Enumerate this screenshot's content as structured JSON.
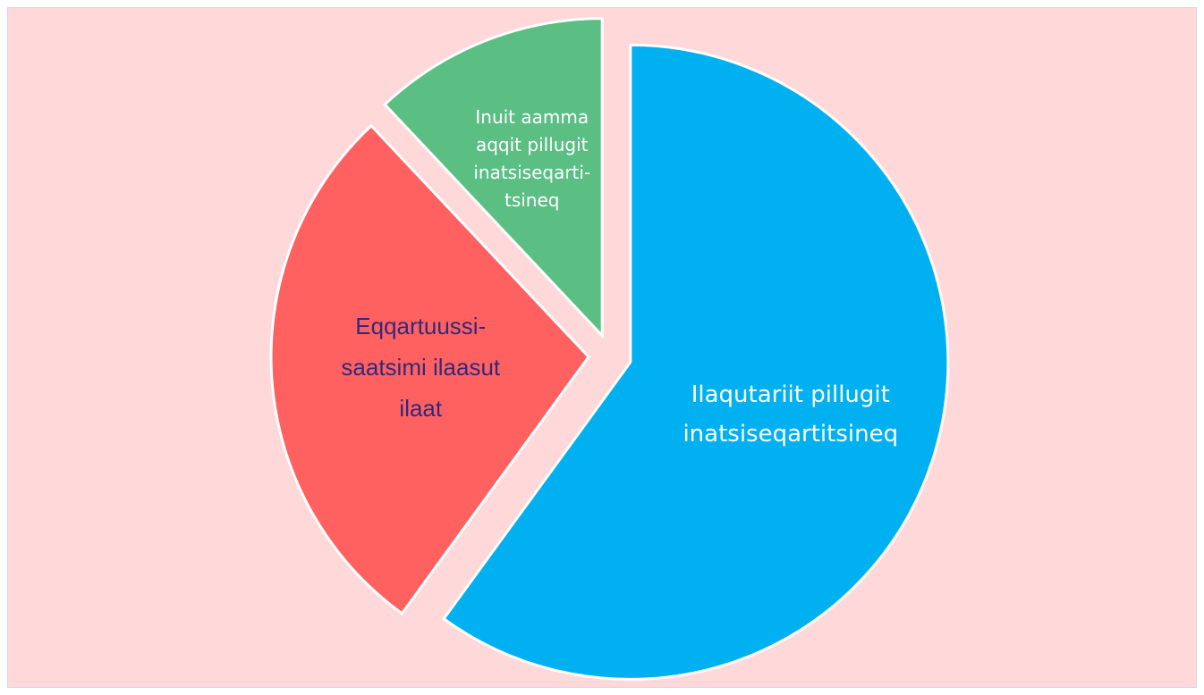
{
  "chart_data": {
    "type": "pie",
    "categories": [
      "Ilaqutariit pillugit\ninatsiseqartitsineq",
      "Eqqartuussi-\nsaatsimi ilaasut\nilaat",
      "Inuit aamma\naqqit pillugit\ninatsiseqarti-\ntsineq"
    ],
    "values": [
      60,
      28,
      12
    ],
    "colors": [
      "#00b0f0",
      "#ff6161",
      "#5bbf84"
    ],
    "exploded": true
  }
}
